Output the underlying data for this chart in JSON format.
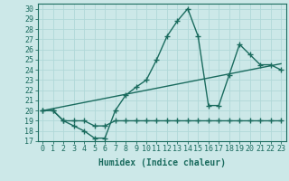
{
  "xlabel": "Humidex (Indice chaleur)",
  "bg_color": "#cce8e8",
  "line_color": "#1a6b5e",
  "grid_color": "#b0d8d8",
  "xlim": [
    -0.5,
    23.5
  ],
  "ylim": [
    17,
    30.5
  ],
  "xticks": [
    0,
    1,
    2,
    3,
    4,
    5,
    6,
    7,
    8,
    9,
    10,
    11,
    12,
    13,
    14,
    15,
    16,
    17,
    18,
    19,
    20,
    21,
    22,
    23
  ],
  "yticks": [
    17,
    18,
    19,
    20,
    21,
    22,
    23,
    24,
    25,
    26,
    27,
    28,
    29,
    30
  ],
  "line1_x": [
    0,
    1,
    2,
    3,
    4,
    5,
    6,
    7,
    8,
    9,
    10,
    11,
    12,
    13,
    14,
    15,
    16,
    17,
    18,
    19,
    20,
    21,
    22,
    23
  ],
  "line1_y": [
    20.0,
    20.0,
    19.0,
    18.5,
    18.0,
    17.3,
    17.3,
    20.0,
    21.5,
    22.3,
    23.0,
    25.0,
    27.3,
    28.8,
    30.0,
    27.3,
    20.5,
    20.5,
    23.5,
    26.5,
    25.5,
    24.5,
    24.5,
    24.0
  ],
  "line2_x": [
    0,
    1,
    2,
    3,
    4,
    5,
    6,
    7,
    8,
    9,
    10,
    11,
    12,
    13,
    14,
    15,
    16,
    17,
    18,
    19,
    20,
    21,
    22,
    23
  ],
  "line2_y": [
    20.0,
    20.0,
    19.0,
    19.0,
    19.0,
    18.5,
    18.5,
    19.0,
    19.0,
    19.0,
    19.0,
    19.0,
    19.0,
    19.0,
    19.0,
    19.0,
    19.0,
    19.0,
    19.0,
    19.0,
    19.0,
    19.0,
    19.0,
    19.0
  ],
  "line3_x": [
    0,
    1,
    2,
    3,
    4,
    5,
    6,
    7,
    8,
    9,
    10,
    11,
    12,
    13,
    14,
    15,
    16,
    17,
    18,
    19,
    20,
    21,
    22,
    23
  ],
  "line3_y": [
    20.0,
    20.2,
    20.4,
    20.6,
    20.8,
    21.0,
    21.2,
    21.4,
    21.6,
    21.8,
    22.0,
    22.2,
    22.4,
    22.6,
    22.8,
    23.0,
    23.2,
    23.4,
    23.6,
    23.8,
    24.0,
    24.2,
    24.4,
    24.6
  ],
  "markersize": 4,
  "linewidth": 1.0,
  "label_fontsize": 7,
  "tick_fontsize": 6
}
